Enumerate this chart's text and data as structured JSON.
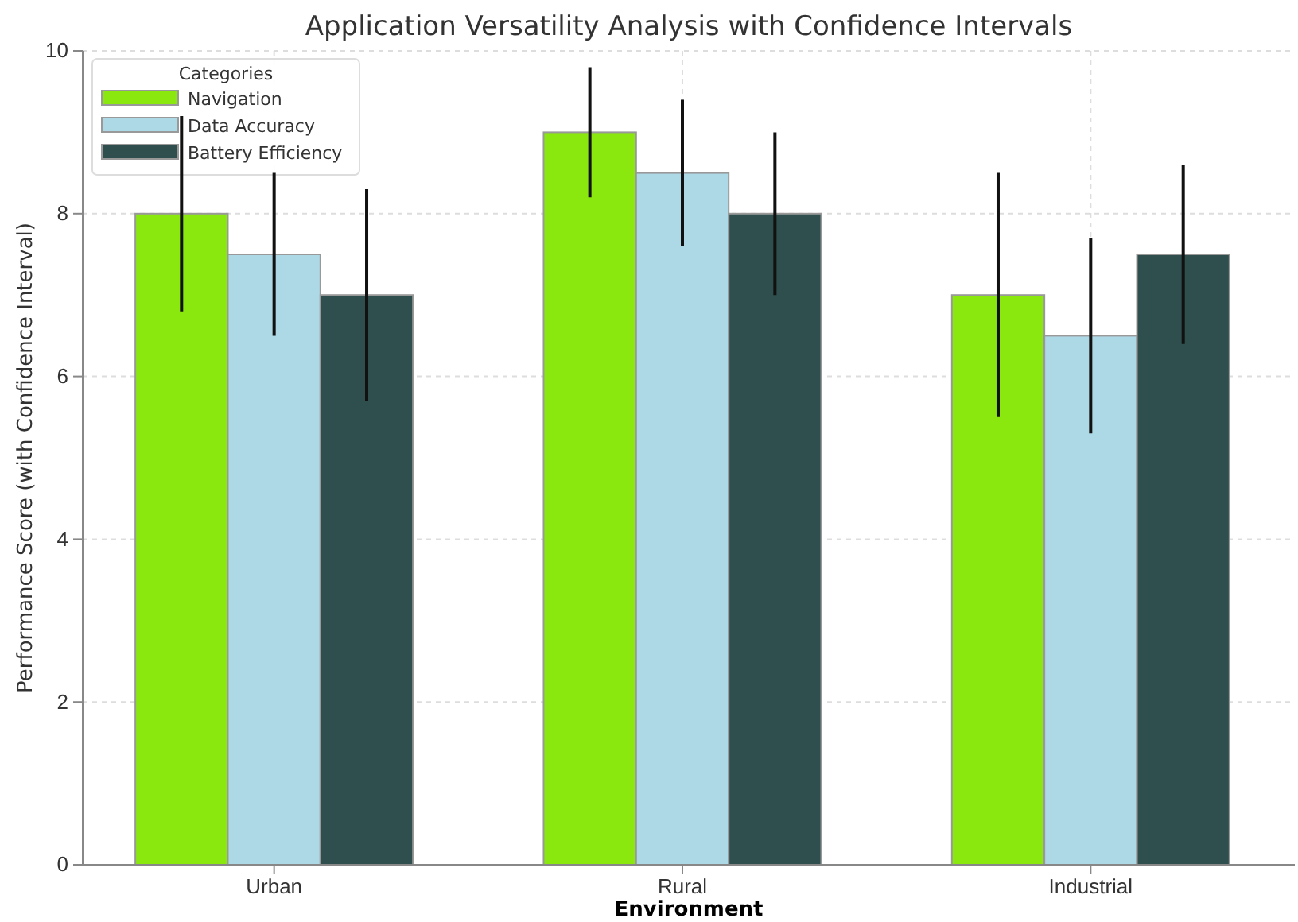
{
  "chart_data": {
    "type": "bar",
    "title": "Application Versatility Analysis with Confidence Intervals",
    "xlabel": "Environment",
    "ylabel": "Performance Score (with Confidence Interval)",
    "legend_title": "Categories",
    "categories": [
      "Urban",
      "Rural",
      "Industrial"
    ],
    "series": [
      {
        "name": "Navigation",
        "color": "#8ae80f",
        "values": [
          8,
          9,
          7
        ],
        "errors": [
          1.2,
          0.8,
          1.5
        ]
      },
      {
        "name": "Data Accuracy",
        "color": "#add8e6",
        "values": [
          7.5,
          8.5,
          6.5
        ],
        "errors": [
          1.0,
          0.9,
          1.2
        ]
      },
      {
        "name": "Battery Efficiency",
        "color": "#2f4f4f",
        "values": [
          7,
          8,
          7.5
        ],
        "errors": [
          1.3,
          1.0,
          1.1
        ]
      }
    ],
    "ylim": [
      0,
      10
    ],
    "yticks": [
      0,
      2,
      4,
      6,
      8,
      10
    ],
    "grid": true,
    "legend": "top left"
  }
}
